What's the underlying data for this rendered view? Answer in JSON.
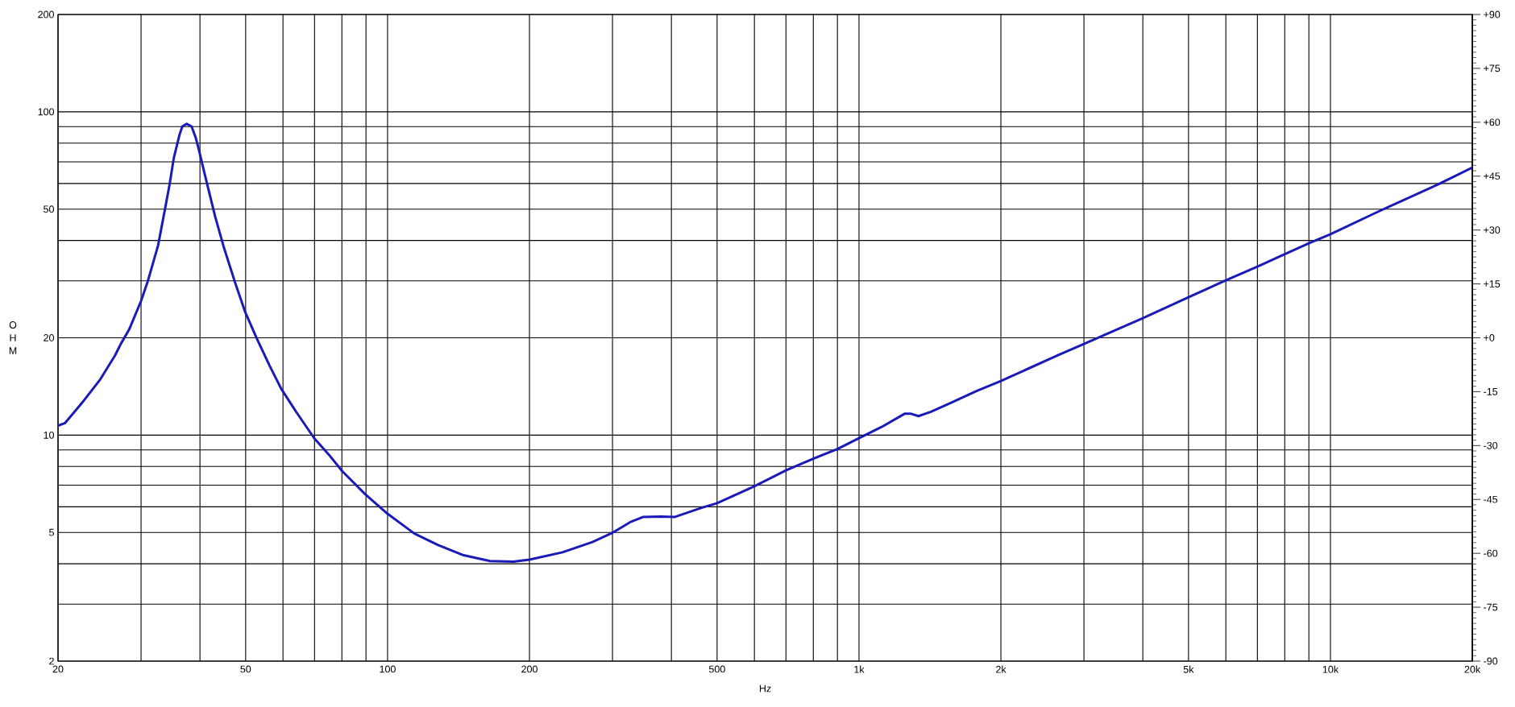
{
  "chart_data": {
    "type": "line",
    "xlabel": "Hz",
    "ylabel": "OHM",
    "log": "xy",
    "grid": true,
    "xlim": [
      20,
      20000
    ],
    "ylim": [
      2,
      200
    ],
    "xticks": [
      20,
      {
        "value": 30,
        "label": null
      },
      {
        "value": 40,
        "label": null
      },
      50,
      {
        "value": 60,
        "label": null
      },
      {
        "value": 70,
        "label": null
      },
      {
        "value": 80,
        "label": null
      },
      {
        "value": 90,
        "label": null
      },
      100,
      200,
      {
        "value": 300,
        "label": null
      },
      {
        "value": 400,
        "label": null
      },
      500,
      {
        "value": 600,
        "label": null
      },
      {
        "value": 700,
        "label": null
      },
      {
        "value": 800,
        "label": null
      },
      {
        "value": 900,
        "label": null
      },
      {
        "value": 1000,
        "label": "1k"
      },
      {
        "value": 2000,
        "label": "2k"
      },
      {
        "value": 3000,
        "label": null
      },
      {
        "value": 4000,
        "label": null
      },
      {
        "value": 5000,
        "label": "5k"
      },
      {
        "value": 6000,
        "label": null
      },
      {
        "value": 7000,
        "label": null
      },
      {
        "value": 8000,
        "label": null
      },
      {
        "value": 9000,
        "label": null
      },
      {
        "value": 10000,
        "label": "10k"
      },
      {
        "value": 20000,
        "label": "20k"
      }
    ],
    "yticks": [
      2,
      {
        "value": 3,
        "label": null
      },
      {
        "value": 4,
        "label": null
      },
      5,
      {
        "value": 6,
        "label": null
      },
      {
        "value": 7,
        "label": null
      },
      {
        "value": 8,
        "label": null
      },
      {
        "value": 9,
        "label": null
      },
      10,
      20,
      {
        "value": 30,
        "label": null
      },
      {
        "value": 40,
        "label": null
      },
      50,
      {
        "value": 60,
        "label": null
      },
      {
        "value": 70,
        "label": null
      },
      {
        "value": 80,
        "label": null
      },
      {
        "value": 90,
        "label": null
      },
      100,
      200
    ],
    "y2lim": [
      -90,
      90
    ],
    "y2ticks": [
      -90,
      -75,
      -60,
      -45,
      -30,
      -15,
      {
        "value": 0,
        "label": "+0"
      },
      {
        "value": 15,
        "label": "+15"
      },
      {
        "value": 30,
        "label": "+30"
      },
      {
        "value": 45,
        "label": "+45"
      },
      {
        "value": 60,
        "label": "+60"
      },
      {
        "value": 75,
        "label": "+75"
      },
      {
        "value": 90,
        "label": "+90"
      }
    ],
    "x": [
      20,
      20.7,
      22.5,
      24.6,
      26.4,
      27.2,
      28.3,
      30,
      31,
      32.6,
      33.9,
      34.5,
      35.2,
      36.2,
      36.7,
      37.5,
      38.4,
      39.2,
      39.8,
      41.4,
      43.1,
      44.9,
      47.5,
      49.9,
      52.8,
      56.2,
      59.5,
      64,
      69.9,
      75.1,
      80.1,
      89.6,
      100,
      114,
      128,
      145,
      165,
      185,
      200,
      235,
      272,
      300,
      327,
      348,
      380,
      406,
      462,
      500,
      600,
      700,
      800,
      900,
      1000,
      1117,
      1249,
      1290,
      1337,
      1421,
      1565,
      1779,
      2000,
      2648,
      3000,
      4000,
      5000,
      6000,
      7000,
      8000,
      9000,
      10000,
      12580,
      16900,
      20000
    ],
    "series": [
      {
        "color": "#1a1ab8",
        "values": [
          10.7,
          10.9,
          12.6,
          14.9,
          17.6,
          19.2,
          21.2,
          26.0,
          29.9,
          38.6,
          52.1,
          59.8,
          71.9,
          84.9,
          90.1,
          91.8,
          90.1,
          83.0,
          76.2,
          60.0,
          47.3,
          38.3,
          29.6,
          24.0,
          19.9,
          16.4,
          13.9,
          11.8,
          9.78,
          8.7,
          7.74,
          6.57,
          5.71,
          4.96,
          4.57,
          4.25,
          4.08,
          4.06,
          4.12,
          4.34,
          4.67,
          4.99,
          5.38,
          5.58,
          5.6,
          5.58,
          5.95,
          6.16,
          6.95,
          7.78,
          8.45,
          9.06,
          9.79,
          10.6,
          11.64,
          11.64,
          11.45,
          11.81,
          12.58,
          13.71,
          14.7,
          17.7,
          19.15,
          23.0,
          26.7,
          30.1,
          33.2,
          36.3,
          39.2,
          41.8,
          49.0,
          59.6,
          67.2
        ]
      }
    ]
  }
}
